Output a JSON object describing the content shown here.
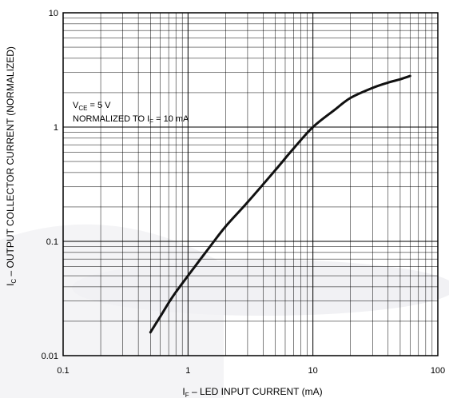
{
  "chart_data": {
    "type": "line",
    "x_scale": "log",
    "y_scale": "log",
    "xlim": [
      0.1,
      100
    ],
    "ylim": [
      0.01,
      10
    ],
    "x_ticks": [
      "0.1",
      "1",
      "10",
      "100"
    ],
    "y_ticks": [
      "0.01",
      "0.1",
      "1",
      "10"
    ],
    "x_ticks_values": [
      0.1,
      1,
      10,
      100
    ],
    "y_ticks_values": [
      0.01,
      0.1,
      1,
      10
    ],
    "xlabel": {
      "main": "I",
      "sub": "F",
      "rest": " – LED INPUT CURRENT (mA)"
    },
    "ylabel": {
      "main": "I",
      "sub": "C",
      "rest": " – OUTPUT COLLECTOR CURRENT (NORMALIZED)"
    },
    "annotations": [
      {
        "main": "V",
        "sub": "CE",
        "rest": " = 5 V"
      },
      {
        "main": "NORMALIZED TO I",
        "sub": "F",
        "rest": " = 10 mA"
      }
    ],
    "grid": true,
    "series": [
      {
        "x": [
          0.5,
          0.6,
          0.7,
          0.8,
          1,
          1.5,
          2,
          3,
          5,
          7,
          10,
          15,
          20,
          30,
          40,
          50,
          60
        ],
        "y": [
          0.016,
          0.022,
          0.029,
          0.036,
          0.05,
          0.09,
          0.135,
          0.22,
          0.42,
          0.65,
          1.0,
          1.42,
          1.8,
          2.2,
          2.45,
          2.62,
          2.8
        ]
      }
    ]
  }
}
